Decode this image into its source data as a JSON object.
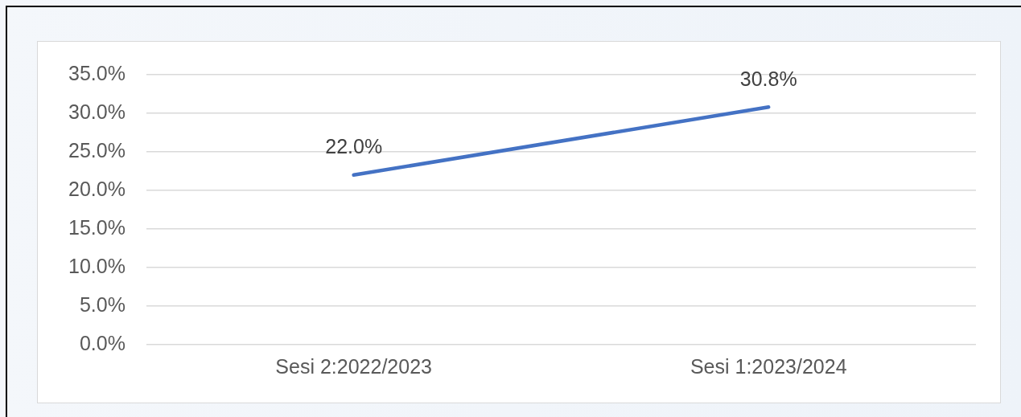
{
  "chart_data": {
    "type": "line",
    "categories": [
      "Sesi 2:2022/2023",
      "Sesi 1:2023/2024"
    ],
    "series": [
      {
        "color": "#4472c4",
        "values": [
          22.0,
          30.8
        ]
      }
    ],
    "value_labels": [
      "22.0%",
      "30.8%"
    ],
    "ylim": [
      0,
      35
    ],
    "yticks": [
      {
        "value": 0,
        "label": "0.0%"
      },
      {
        "value": 5,
        "label": "5.0%"
      },
      {
        "value": 10,
        "label": "10.0%"
      },
      {
        "value": 15,
        "label": "15.0%"
      },
      {
        "value": 20,
        "label": "20.0%"
      },
      {
        "value": 25,
        "label": "25.0%"
      },
      {
        "value": 30,
        "label": "30.0%"
      },
      {
        "value": 35,
        "label": "35.0%"
      }
    ],
    "grid": "y",
    "legend": false,
    "marker": "none",
    "line_style": "solid"
  }
}
